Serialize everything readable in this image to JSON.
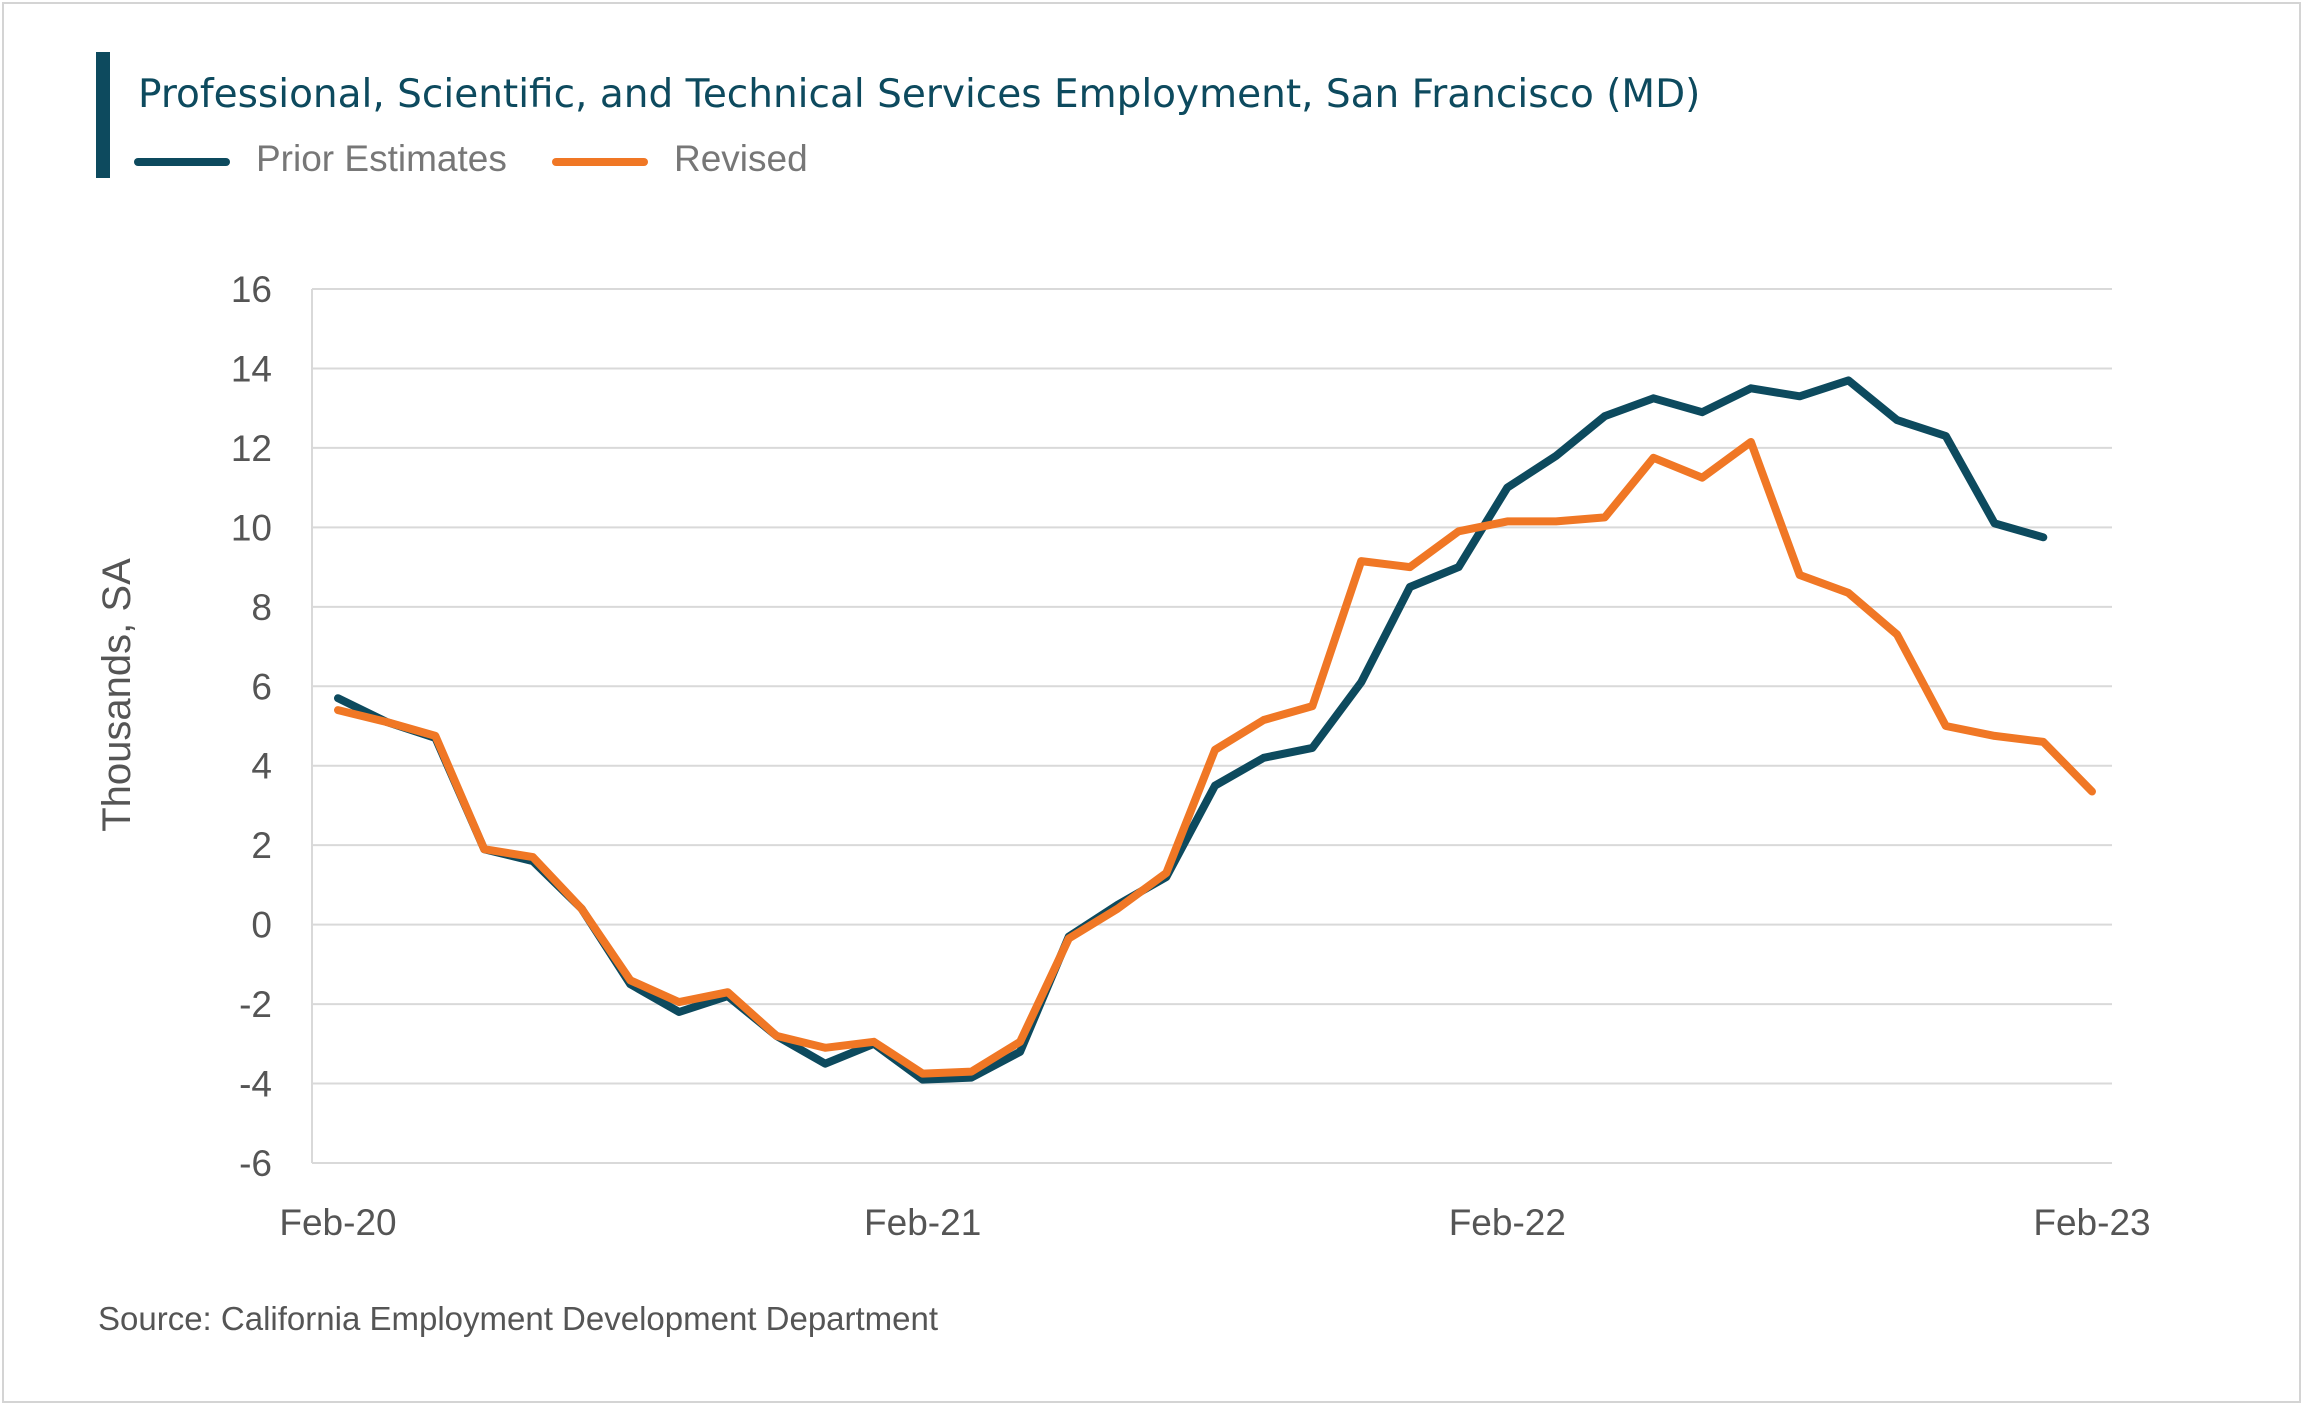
{
  "chart_data": {
    "type": "line",
    "title": "Professional, Scientific, and Technical Services Employment, San Francisco (MD)",
    "xlabel": "",
    "ylabel": "Thousands, SA",
    "source": "Source: California Employment Development Department",
    "ylim": [
      -6,
      16
    ],
    "yticks": [
      "16",
      "14",
      "12",
      "10",
      "8",
      "6",
      "4",
      "2",
      "0",
      "-2",
      "-4",
      "-6"
    ],
    "xticks": [
      "Feb-20",
      "Feb-21",
      "Feb-22",
      "Feb-23"
    ],
    "grid": true,
    "legend_position": "top-left",
    "x": [
      "Feb-20",
      "Mar-20",
      "Apr-20",
      "May-20",
      "Jun-20",
      "Jul-20",
      "Aug-20",
      "Sep-20",
      "Oct-20",
      "Nov-20",
      "Dec-20",
      "Jan-21",
      "Feb-21",
      "Mar-21",
      "Apr-21",
      "May-21",
      "Jun-21",
      "Jul-21",
      "Aug-21",
      "Sep-21",
      "Oct-21",
      "Nov-21",
      "Dec-21",
      "Jan-22",
      "Feb-22",
      "Mar-22",
      "Apr-22",
      "May-22",
      "Jun-22",
      "Jul-22",
      "Aug-22",
      "Sep-22",
      "Oct-22",
      "Nov-22",
      "Dec-22",
      "Jan-23",
      "Feb-23"
    ],
    "series": [
      {
        "name": "Prior Estimates",
        "color": "#0d4a5e",
        "values": [
          5.7,
          5.1,
          4.7,
          1.9,
          1.6,
          0.4,
          -1.5,
          -2.2,
          -1.8,
          -2.8,
          -3.5,
          -3.0,
          -3.9,
          -3.85,
          -3.2,
          -0.3,
          0.5,
          1.2,
          3.5,
          4.2,
          4.45,
          6.1,
          8.5,
          9.0,
          11.0,
          11.8,
          12.8,
          13.25,
          12.9,
          13.5,
          13.3,
          13.7,
          12.7,
          12.3,
          10.1,
          9.75,
          null
        ]
      },
      {
        "name": "Revised",
        "color": "#f07725",
        "values": [
          5.4,
          5.1,
          4.75,
          1.9,
          1.7,
          0.4,
          -1.4,
          -1.95,
          -1.7,
          -2.8,
          -3.1,
          -2.95,
          -3.75,
          -3.7,
          -2.95,
          -0.35,
          0.4,
          1.3,
          4.4,
          5.15,
          5.5,
          9.15,
          9.0,
          9.9,
          10.15,
          10.15,
          10.25,
          11.75,
          11.25,
          12.15,
          8.8,
          8.35,
          7.3,
          5.0,
          4.75,
          4.6,
          3.35
        ]
      }
    ]
  }
}
